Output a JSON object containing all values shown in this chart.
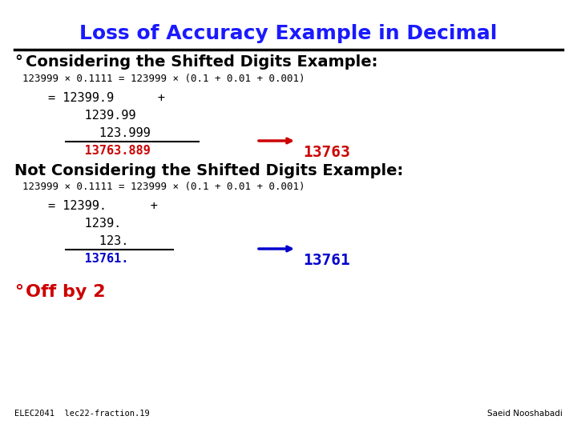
{
  "title": "Loss of Accuracy Example in Decimal",
  "title_color": "#1a1aff",
  "title_fontsize": 18,
  "bg_color": "#ffffff",
  "bullet": "°",
  "section1_header": "Considering the Shifted Digits Example:",
  "section1_eq": "123999 × 0.1111 = 123999 × (0.1 + 0.01 + 0.001)",
  "section1_lines": [
    "= 12399.9      +",
    "     1239.99",
    "       123.999",
    "     13763.889"
  ],
  "section1_result_val": "13763",
  "section1_sum_color": "#cc0000",
  "section1_result_color": "#cc0000",
  "section2_header": "Not Considering the Shifted Digits Example:",
  "section2_eq": "123999 × 0.1111 = 123999 × (0.1 + 0.01 + 0.001)",
  "section2_lines": [
    "= 12399.      +",
    "     1239.",
    "       123.",
    "     13761."
  ],
  "section2_result_val": "13761",
  "section2_sum_color": "#0000cc",
  "section2_result_color": "#0000cc",
  "footer_bullet_text": "Off by 2",
  "footer_bullet_color": "#cc0000",
  "footer_left": "ELEC2041  lec22-fraction.19",
  "footer_right": "Saeid Nooshabadi",
  "mono_color": "#000000",
  "header_color": "#000000"
}
